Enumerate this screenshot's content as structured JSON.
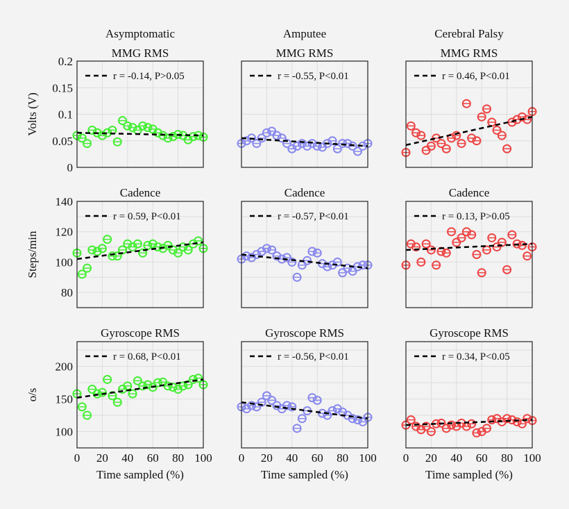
{
  "chart_data": {
    "type": "scatter",
    "columns": [
      "Asymptomatic",
      "Amputee",
      "Cerebral Palsy"
    ],
    "xlabel": "Time sampled (%)",
    "xlim": [
      0,
      100
    ],
    "xticks": [
      0,
      20,
      40,
      60,
      80,
      100
    ],
    "grid": true,
    "legend_placement": "top",
    "colors": {
      "Asymptomatic": "#44ee33",
      "Amputee": "#8888ee",
      "Cerebral Palsy": "#ee4444",
      "trend": "#000000"
    },
    "x": [
      0,
      4,
      8,
      12,
      16,
      20,
      24,
      28,
      32,
      36,
      40,
      44,
      48,
      52,
      56,
      60,
      64,
      68,
      72,
      76,
      80,
      84,
      88,
      92,
      96,
      100
    ],
    "rows": [
      {
        "title": "MMG RMS",
        "ylabel": "Volts (V)",
        "ylim": [
          0,
          0.2
        ],
        "yticks": [
          0,
          0.05,
          0.1,
          0.15,
          0.2
        ],
        "ytick_labels": [
          "0",
          "0.05",
          "0.1",
          "0.15",
          "0.2"
        ],
        "ygrid_step": 0.05,
        "panels": [
          {
            "legend": "r = -0.14, P>0.05",
            "trend": [
              0.065,
              0.06
            ],
            "y": [
              0.06,
              0.055,
              0.045,
              0.07,
              0.065,
              0.06,
              0.065,
              0.07,
              0.048,
              0.088,
              0.078,
              0.075,
              0.07,
              0.078,
              0.075,
              0.072,
              0.065,
              0.06,
              0.055,
              0.058,
              0.062,
              0.06,
              0.052,
              0.058,
              0.06,
              0.057
            ]
          },
          {
            "legend": "r = -0.55, P<0.01",
            "trend": [
              0.055,
              0.04
            ],
            "y": [
              0.045,
              0.05,
              0.055,
              0.045,
              0.055,
              0.065,
              0.068,
              0.06,
              0.055,
              0.045,
              0.035,
              0.04,
              0.045,
              0.04,
              0.045,
              0.04,
              0.038,
              0.045,
              0.05,
              0.035,
              0.045,
              0.045,
              0.04,
              0.03,
              0.04,
              0.045
            ]
          },
          {
            "legend": "r = 0.46, P<0.01",
            "trend": [
              0.042,
              0.095
            ],
            "y": [
              0.028,
              0.078,
              0.065,
              0.06,
              0.032,
              0.04,
              0.055,
              0.045,
              0.035,
              0.055,
              0.06,
              0.045,
              0.12,
              0.055,
              0.05,
              0.095,
              0.11,
              0.085,
              0.07,
              0.06,
              0.035,
              0.085,
              0.09,
              0.095,
              0.09,
              0.105
            ]
          }
        ]
      },
      {
        "title": "Cadence",
        "ylabel": "Steps/min",
        "ylim": [
          70,
          140
        ],
        "yticks": [
          80,
          100,
          120,
          140
        ],
        "ytick_labels": [
          "80",
          "100",
          "120",
          "140"
        ],
        "ygrid_step": 10,
        "panels": [
          {
            "legend": "r = 0.59, P<0.01",
            "trend": [
              102,
              113
            ],
            "y": [
              106,
              92,
              96,
              108,
              107,
              109,
              115,
              104,
              104,
              108,
              112,
              110,
              112,
              106,
              111,
              112,
              110,
              109,
              111,
              108,
              106,
              110,
              108,
              112,
              114,
              109
            ]
          },
          {
            "legend": "r = -0.57, P<0.01",
            "trend": [
              105,
              96
            ],
            "y": [
              102,
              104,
              103,
              105,
              107,
              109,
              108,
              104,
              102,
              103,
              100,
              90,
              98,
              101,
              107,
              106,
              99,
              97,
              98,
              100,
              93,
              96,
              94,
              97,
              98,
              98
            ]
          },
          {
            "legend": "r = 0.13, P>0.05",
            "trend": [
              108,
              112
            ],
            "y": [
              98,
              112,
              110,
              100,
              112,
              108,
              98,
              107,
              106,
              120,
              113,
              116,
              120,
              118,
              105,
              93,
              108,
              116,
              110,
              113,
              95,
              118,
              112,
              111,
              104,
              110
            ]
          }
        ]
      },
      {
        "title": "Gyroscope RMS",
        "ylabel": "o/s",
        "ylim": [
          75,
          238
        ],
        "yticks": [
          100,
          150,
          200
        ],
        "ytick_labels": [
          "100",
          "150",
          "200"
        ],
        "ygrid_step": 25,
        "panels": [
          {
            "legend": "r = 0.68, P<0.01",
            "trend": [
              152,
              180
            ],
            "y": [
              158,
              138,
              125,
              165,
              158,
              160,
              180,
              155,
              145,
              165,
              170,
              158,
              178,
              170,
              172,
              168,
              175,
              176,
              170,
              168,
              165,
              170,
              172,
              180,
              182,
              172
            ]
          },
          {
            "legend": "r = -0.56, P<0.01",
            "trend": [
              145,
              120
            ],
            "y": [
              138,
              135,
              140,
              138,
              145,
              155,
              148,
              140,
              135,
              140,
              138,
              105,
              120,
              132,
              152,
              148,
              128,
              125,
              132,
              135,
              130,
              125,
              120,
              118,
              115,
              122
            ]
          },
          {
            "legend": "r = 0.34, P<0.05",
            "trend": [
              110,
              118
            ],
            "y": [
              110,
              118,
              108,
              103,
              108,
              100,
              112,
              113,
              105,
              110,
              108,
              113,
              108,
              112,
              98,
              100,
              105,
              118,
              120,
              115,
              120,
              118,
              115,
              112,
              120,
              117
            ]
          }
        ]
      }
    ]
  }
}
